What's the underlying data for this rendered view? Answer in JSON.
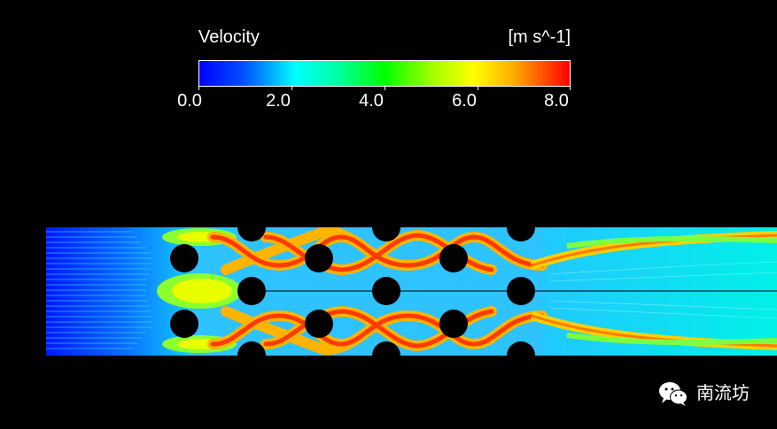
{
  "legend": {
    "title": "Velocity",
    "units": "[m s^-1]",
    "ticks": [
      "0.0",
      "2.0",
      "4.0",
      "6.0",
      "8.0"
    ],
    "min": 0.0,
    "max": 8.0,
    "colormap": [
      "#0000ff",
      "#00ffff",
      "#00ff00",
      "#ffff00",
      "#ff0000"
    ]
  },
  "watermark": {
    "text": "南流坊",
    "icon": "wechat-icon"
  }
}
